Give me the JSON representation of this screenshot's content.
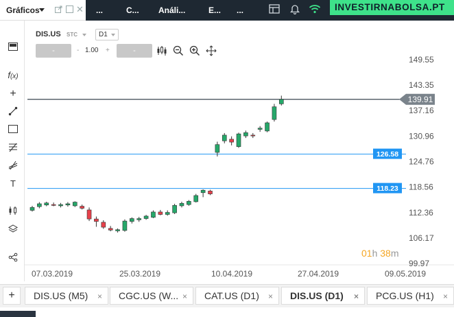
{
  "header": {
    "section_label": "Gráficos",
    "tabs": [
      "...",
      "C...",
      "Análi...",
      "E...",
      "..."
    ],
    "brand": "INVESTIRNABOLSA.PT"
  },
  "chart_header": {
    "symbol": "DIS.US",
    "mode": "STC",
    "timeframe": "D1",
    "sell_label": "-",
    "buy_label": "-",
    "quantity": "1.00",
    "qty_minus": "-",
    "qty_plus": "+"
  },
  "countdown": {
    "hours": "01",
    "h_unit": "h",
    "minutes": "38",
    "m_unit": "m"
  },
  "bottom_tabs": [
    {
      "label": "DIS.US (M5)",
      "active": false
    },
    {
      "label": "CGC.US (W...",
      "active": false
    },
    {
      "label": "CAT.US (D1)",
      "active": false
    },
    {
      "label": "DIS.US (D1)",
      "active": true
    },
    {
      "label": "PCG.US (H1)",
      "active": false
    }
  ],
  "add_tab_label": "+",
  "close_glyph": "×",
  "colors": {
    "up": "#26a86a",
    "down": "#e8414b",
    "level_line": "#2196f3",
    "price_line": "#3a4650",
    "brand_bg": "#3ee28a",
    "countdown": "#f5a623"
  },
  "chart_data": {
    "type": "candlestick",
    "symbol": "DIS.US",
    "timeframe": "D1",
    "y_range": [
      99.97,
      149.55
    ],
    "y_ticks": [
      149.55,
      143.35,
      137.16,
      130.96,
      124.76,
      118.56,
      112.36,
      106.17,
      99.97
    ],
    "x_tick_labels": [
      "07.03.2019",
      "25.03.2019",
      "10.04.2019",
      "27.04.2019",
      "09.05.2019"
    ],
    "horizontal_levels": [
      {
        "label": "126.58",
        "value": 126.58
      },
      {
        "label": "118.23",
        "value": 118.23
      }
    ],
    "current_price": {
      "label": "139.91",
      "value": 139.91
    },
    "candles": [
      {
        "o": 112.9,
        "h": 114.0,
        "l": 112.6,
        "c": 113.6
      },
      {
        "o": 113.8,
        "h": 114.9,
        "l": 113.4,
        "c": 114.5
      },
      {
        "o": 114.2,
        "h": 115.0,
        "l": 113.9,
        "c": 114.7
      },
      {
        "o": 114.3,
        "h": 114.8,
        "l": 113.9,
        "c": 114.2
      },
      {
        "o": 114.0,
        "h": 114.7,
        "l": 113.6,
        "c": 114.3
      },
      {
        "o": 114.2,
        "h": 114.9,
        "l": 113.8,
        "c": 114.5
      },
      {
        "o": 114.0,
        "h": 115.1,
        "l": 113.7,
        "c": 114.9
      },
      {
        "o": 113.9,
        "h": 114.3,
        "l": 113.1,
        "c": 113.4
      },
      {
        "o": 113.0,
        "h": 113.6,
        "l": 110.3,
        "c": 110.8
      },
      {
        "o": 110.8,
        "h": 111.4,
        "l": 108.9,
        "c": 110.2
      },
      {
        "o": 110.0,
        "h": 110.5,
        "l": 108.4,
        "c": 108.8
      },
      {
        "o": 108.5,
        "h": 109.1,
        "l": 107.8,
        "c": 108.1
      },
      {
        "o": 107.9,
        "h": 108.5,
        "l": 107.5,
        "c": 108.2
      },
      {
        "o": 108.0,
        "h": 110.7,
        "l": 107.7,
        "c": 110.3
      },
      {
        "o": 110.2,
        "h": 111.2,
        "l": 109.7,
        "c": 110.9
      },
      {
        "o": 110.6,
        "h": 111.3,
        "l": 110.1,
        "c": 110.9
      },
      {
        "o": 110.9,
        "h": 111.8,
        "l": 110.6,
        "c": 111.5
      },
      {
        "o": 111.2,
        "h": 112.9,
        "l": 111.0,
        "c": 112.5
      },
      {
        "o": 112.5,
        "h": 113.0,
        "l": 111.7,
        "c": 111.9
      },
      {
        "o": 111.9,
        "h": 112.9,
        "l": 111.6,
        "c": 112.4
      },
      {
        "o": 112.3,
        "h": 114.5,
        "l": 112.0,
        "c": 114.1
      },
      {
        "o": 114.0,
        "h": 115.0,
        "l": 113.6,
        "c": 114.6
      },
      {
        "o": 114.3,
        "h": 115.4,
        "l": 114.0,
        "c": 115.1
      },
      {
        "o": 115.0,
        "h": 116.9,
        "l": 114.8,
        "c": 116.5
      },
      {
        "o": 117.2,
        "h": 118.0,
        "l": 116.1,
        "c": 117.8
      },
      {
        "o": 117.6,
        "h": 117.9,
        "l": 116.6,
        "c": 116.9
      },
      {
        "o": 127.0,
        "h": 129.6,
        "l": 126.0,
        "c": 128.9
      },
      {
        "o": 129.8,
        "h": 131.7,
        "l": 129.2,
        "c": 131.2
      },
      {
        "o": 130.2,
        "h": 130.9,
        "l": 128.7,
        "c": 129.5
      },
      {
        "o": 128.4,
        "h": 131.8,
        "l": 128.1,
        "c": 131.5
      },
      {
        "o": 131.0,
        "h": 132.3,
        "l": 130.5,
        "c": 131.8
      },
      {
        "o": 131.2,
        "h": 131.7,
        "l": 130.5,
        "c": 131.0
      },
      {
        "o": 132.6,
        "h": 133.4,
        "l": 132.0,
        "c": 132.9
      },
      {
        "o": 132.2,
        "h": 134.5,
        "l": 131.9,
        "c": 134.2
      },
      {
        "o": 135.0,
        "h": 138.8,
        "l": 134.5,
        "c": 138.1
      },
      {
        "o": 138.8,
        "h": 140.8,
        "l": 138.4,
        "c": 139.91
      }
    ]
  }
}
